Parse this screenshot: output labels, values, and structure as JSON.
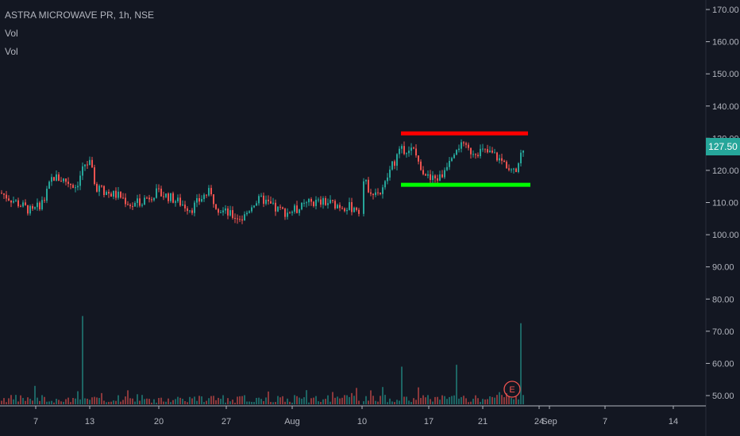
{
  "legend": {
    "symbol_line": "ASTRA MICROWAVE PR, 1h, NSE",
    "vol_1": "Vol",
    "vol_2": "Vol"
  },
  "last_price_label": "127.50",
  "earnings_marker": "E",
  "colors": {
    "background": "#131722",
    "up": "#26a69a",
    "down": "#ef5350",
    "resistance_line": "#ff0000",
    "support_line": "#00ff00",
    "axis_text": "#b2b5be"
  },
  "chart_data": {
    "type": "candlestick",
    "title": "ASTRA MICROWAVE PR, 1h, NSE",
    "ylim": [
      47,
      172
    ],
    "y_ticks": [
      "170.00",
      "160.00",
      "150.00",
      "140.00",
      "130.00",
      "120.00",
      "110.00",
      "100.00",
      "90.00",
      "80.00",
      "70.00",
      "60.00",
      "50.00"
    ],
    "y_tick_values": [
      170,
      160,
      150,
      140,
      130,
      120,
      110,
      100,
      90,
      80,
      70,
      60,
      50
    ],
    "x_ticks": [
      "7",
      "13",
      "20",
      "27",
      "Aug",
      "10",
      "17",
      "21",
      "24",
      "Sep",
      "7",
      "14"
    ],
    "price_path": [
      [
        0,
        113
      ],
      [
        20,
        110
      ],
      [
        40,
        107
      ],
      [
        55,
        111
      ],
      [
        65,
        118
      ],
      [
        80,
        117
      ],
      [
        95,
        115
      ],
      [
        105,
        122
      ],
      [
        112,
        122
      ],
      [
        120,
        115
      ],
      [
        135,
        113
      ],
      [
        150,
        112
      ],
      [
        165,
        109
      ],
      [
        180,
        111
      ],
      [
        195,
        113
      ],
      [
        210,
        112
      ],
      [
        225,
        110
      ],
      [
        240,
        108
      ],
      [
        255,
        112
      ],
      [
        262,
        113
      ],
      [
        275,
        108
      ],
      [
        290,
        106
      ],
      [
        305,
        105
      ],
      [
        318,
        110
      ],
      [
        330,
        111
      ],
      [
        345,
        108
      ],
      [
        360,
        107
      ],
      [
        375,
        108
      ],
      [
        390,
        110
      ],
      [
        410,
        110
      ],
      [
        430,
        109
      ],
      [
        452,
        108
      ],
      [
        456,
        117
      ],
      [
        465,
        114
      ],
      [
        480,
        113
      ],
      [
        490,
        120
      ],
      [
        500,
        125
      ],
      [
        510,
        127
      ],
      [
        520,
        126
      ],
      [
        530,
        121
      ],
      [
        540,
        117
      ],
      [
        555,
        118
      ],
      [
        565,
        124
      ],
      [
        575,
        128
      ],
      [
        590,
        126
      ],
      [
        605,
        126
      ],
      [
        620,
        125
      ],
      [
        635,
        122
      ],
      [
        650,
        121
      ],
      [
        658,
        127.5
      ]
    ],
    "volume_spike_x": [
      104,
      455,
      505,
      573,
      655
    ],
    "resistance_level": 131.5,
    "support_level": 115.5,
    "last_price": 127.5
  }
}
